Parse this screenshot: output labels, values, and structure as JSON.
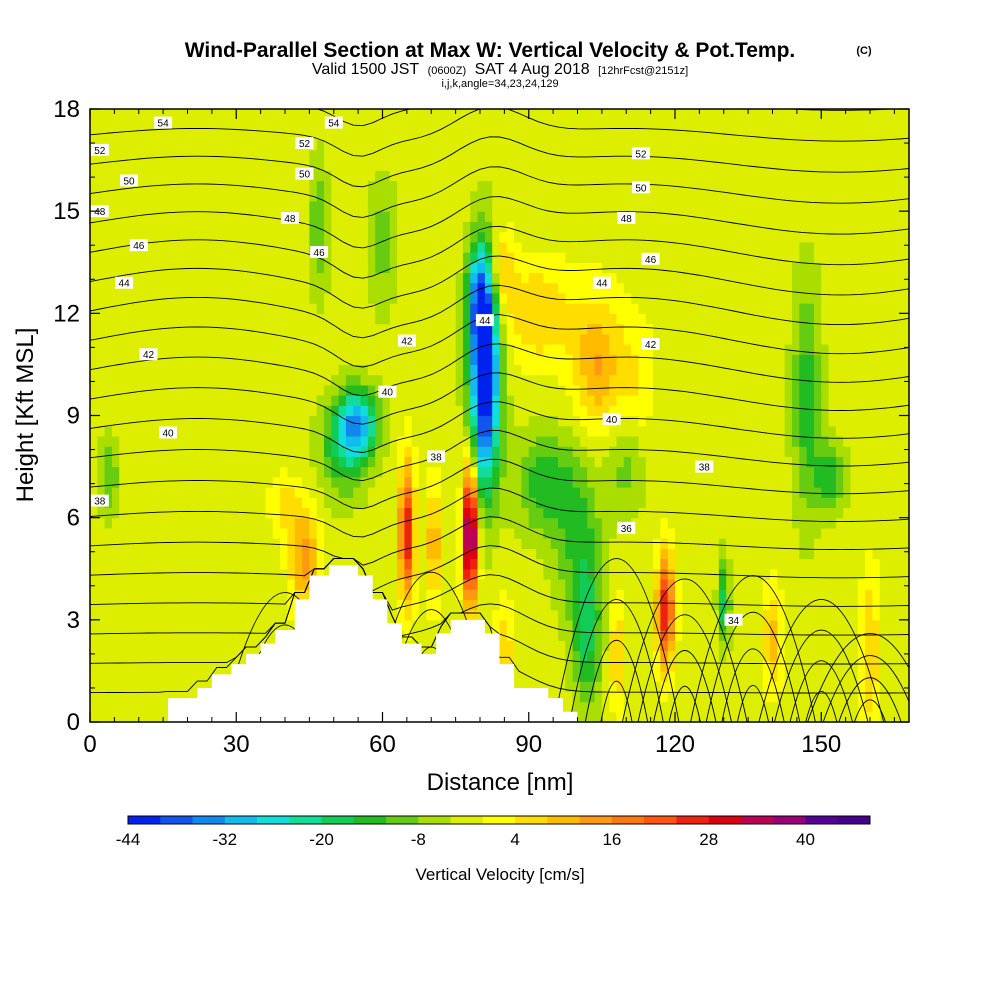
{
  "title": {
    "main": "Wind-Parallel Section at Max W: Vertical Velocity & Pot.Temp.",
    "main_suffix": "(C)",
    "valid_prefix": "Valid 1500 JST",
    "valid_utc": "(0600Z)",
    "valid_date": "SAT 4 Aug 2018",
    "forecast": "[12hrFcst@2151z]",
    "indices": "i,j,k,angle=34,23,24,129"
  },
  "chart_data": {
    "type": "heatmap",
    "xlabel": "Distance [nm]",
    "ylabel": "Height [Kft MSL]",
    "xlim": [
      0,
      168
    ],
    "ylim": [
      0,
      18
    ],
    "x_ticks": [
      0,
      30,
      60,
      90,
      120,
      150
    ],
    "y_ticks": [
      0,
      3,
      6,
      9,
      12,
      15,
      18
    ],
    "fill_variable": "Vertical Velocity [cm/s]",
    "colorbar": {
      "label": "Vertical Velocity [cm/s]",
      "tick_labels": [
        "-44",
        "-32",
        "-20",
        "-8",
        "4",
        "16",
        "28",
        "40"
      ],
      "tick_values": [
        -44,
        -32,
        -20,
        -8,
        4,
        16,
        28,
        40
      ],
      "min": -44,
      "max": 48,
      "step": 4,
      "colors": [
        "#0022ee",
        "#1155ee",
        "#1188ee",
        "#11bbee",
        "#11dddd",
        "#11dd99",
        "#11cc55",
        "#22bb22",
        "#66cc11",
        "#aadd00",
        "#ddee00",
        "#ffff00",
        "#ffdd00",
        "#ffbb00",
        "#ff9911",
        "#ff7711",
        "#ff5511",
        "#ee2211",
        "#dd0011",
        "#bb0055",
        "#990077",
        "#550099",
        "#440088"
      ]
    },
    "contour_variable": "Potential temperature (C)",
    "contour_labels": [
      {
        "value": "54",
        "x": 15,
        "y": 17.6
      },
      {
        "value": "54",
        "x": 50,
        "y": 17.6
      },
      {
        "value": "52",
        "x": 2,
        "y": 16.8
      },
      {
        "value": "52",
        "x": 44,
        "y": 17.0
      },
      {
        "value": "52",
        "x": 113,
        "y": 16.7
      },
      {
        "value": "50",
        "x": 8,
        "y": 15.9
      },
      {
        "value": "50",
        "x": 44,
        "y": 16.1
      },
      {
        "value": "50",
        "x": 113,
        "y": 15.7
      },
      {
        "value": "48",
        "x": 2,
        "y": 15.0
      },
      {
        "value": "48",
        "x": 41,
        "y": 14.8
      },
      {
        "value": "48",
        "x": 110,
        "y": 14.8
      },
      {
        "value": "46",
        "x": 10,
        "y": 14.0
      },
      {
        "value": "46",
        "x": 47,
        "y": 13.8
      },
      {
        "value": "46",
        "x": 115,
        "y": 13.6
      },
      {
        "value": "44",
        "x": 7,
        "y": 12.9
      },
      {
        "value": "44",
        "x": 81,
        "y": 11.8
      },
      {
        "value": "44",
        "x": 105,
        "y": 12.9
      },
      {
        "value": "42",
        "x": 12,
        "y": 10.8
      },
      {
        "value": "42",
        "x": 65,
        "y": 11.2
      },
      {
        "value": "42",
        "x": 115,
        "y": 11.1
      },
      {
        "value": "40",
        "x": 16,
        "y": 8.5
      },
      {
        "value": "40",
        "x": 61,
        "y": 9.7
      },
      {
        "value": "40",
        "x": 107,
        "y": 8.9
      },
      {
        "value": "38",
        "x": 2,
        "y": 6.5
      },
      {
        "value": "38",
        "x": 71,
        "y": 7.8
      },
      {
        "value": "38",
        "x": 126,
        "y": 7.5
      },
      {
        "value": "36",
        "x": 110,
        "y": 5.7
      },
      {
        "value": "34",
        "x": 132,
        "y": 3.0
      }
    ],
    "terrain_color": "#ffffff"
  }
}
